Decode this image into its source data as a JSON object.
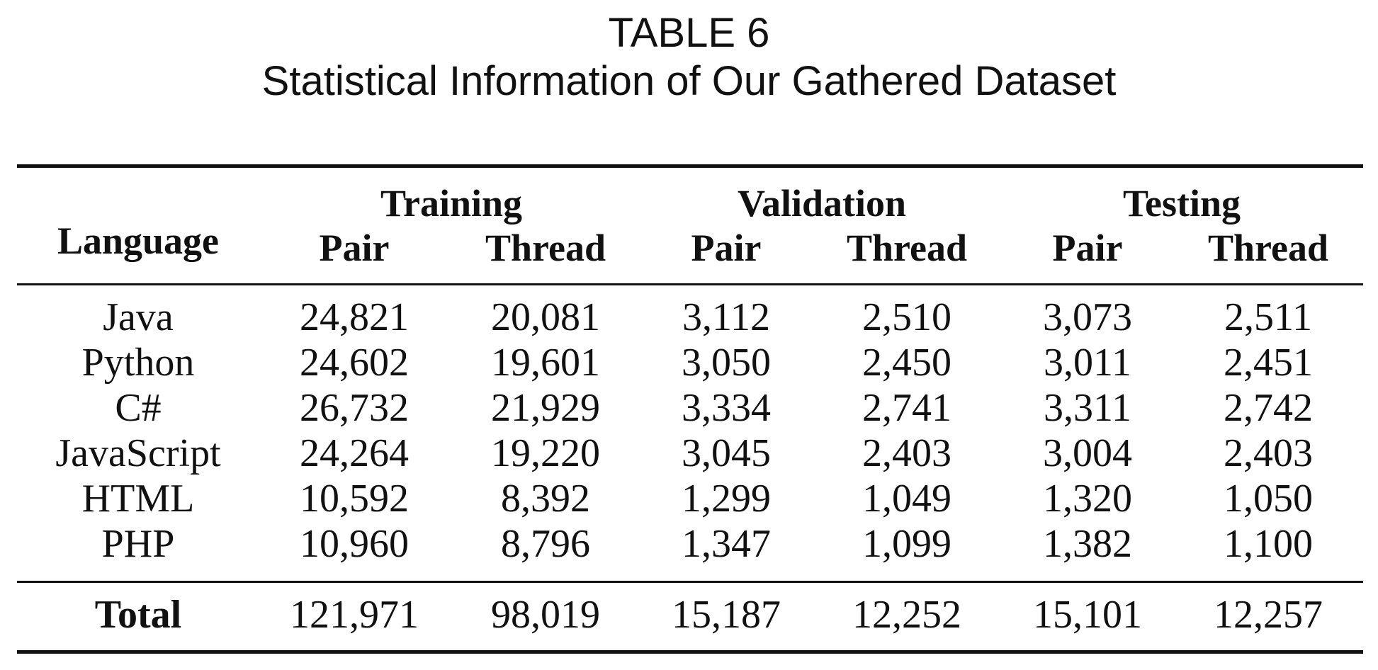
{
  "caption": {
    "label": "TABLE 6",
    "title": "Statistical Information of Our Gathered Dataset"
  },
  "table": {
    "language_header": "Language",
    "groups": [
      "Training",
      "Validation",
      "Testing"
    ],
    "subheaders": [
      "Pair",
      "Thread",
      "Pair",
      "Thread",
      "Pair",
      "Thread"
    ],
    "rows": [
      {
        "language": "Java",
        "values": [
          "24,821",
          "20,081",
          "3,112",
          "2,510",
          "3,073",
          "2,511"
        ]
      },
      {
        "language": "Python",
        "values": [
          "24,602",
          "19,601",
          "3,050",
          "2,450",
          "3,011",
          "2,451"
        ]
      },
      {
        "language": "C#",
        "values": [
          "26,732",
          "21,929",
          "3,334",
          "2,741",
          "3,311",
          "2,742"
        ]
      },
      {
        "language": "JavaScript",
        "values": [
          "24,264",
          "19,220",
          "3,045",
          "2,403",
          "3,004",
          "2,403"
        ]
      },
      {
        "language": "HTML",
        "values": [
          "10,592",
          "8,392",
          "1,299",
          "1,049",
          "1,320",
          "1,050"
        ]
      },
      {
        "language": "PHP",
        "values": [
          "10,960",
          "8,796",
          "1,347",
          "1,099",
          "1,382",
          "1,100"
        ]
      }
    ],
    "total": {
      "label": "Total",
      "values": [
        "121,971",
        "98,019",
        "15,187",
        "12,252",
        "15,101",
        "12,257"
      ]
    }
  }
}
